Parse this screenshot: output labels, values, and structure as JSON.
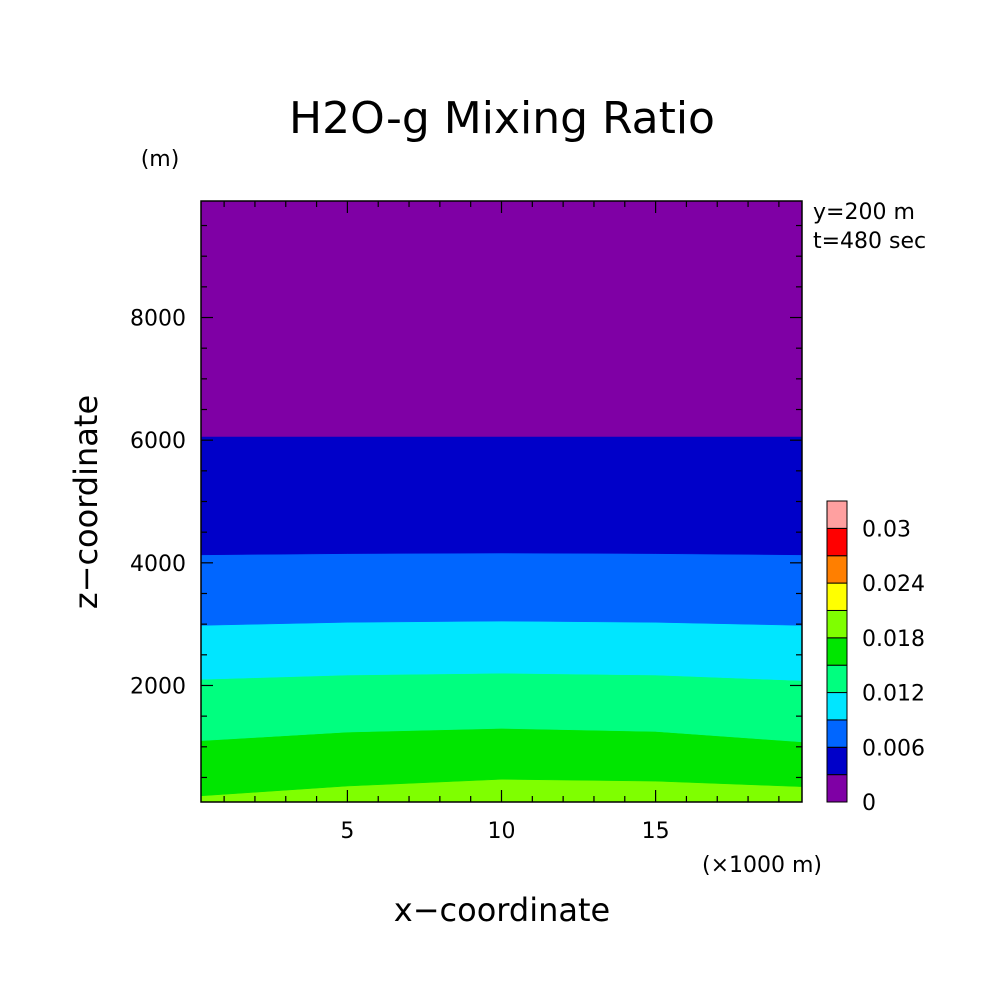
{
  "chart_data": {
    "type": "contour",
    "title": "H2O-g Mixing Ratio",
    "xlabel": "x−coordinate",
    "ylabel": "z−coordinate",
    "x_unit": "(×1000 m)",
    "y_unit": "(m)",
    "annotations": [
      "y=200 m",
      "t=480 sec"
    ],
    "xlim": [
      0.25,
      19.75
    ],
    "ylim": [
      100,
      9900
    ],
    "x_ticks": [
      5,
      10,
      15
    ],
    "y_ticks": [
      2000,
      4000,
      6000,
      8000
    ],
    "contour_levels": [
      0,
      0.003,
      0.006,
      0.009,
      0.012,
      0.015,
      0.018,
      0.021,
      0.024,
      0.027,
      0.03,
      0.033
    ],
    "level_colors": [
      "#7f00a5",
      "#0000c9",
      "#0066ff",
      "#00e6ff",
      "#00ff7f",
      "#00e600",
      "#7fff00",
      "#ffff00",
      "#ff7f00",
      "#ff0000",
      "#ffa0a0"
    ],
    "colorbar_labels": [
      "0",
      "0.006",
      "0.012",
      "0.018",
      "0.024",
      "0.03"
    ],
    "boundaries": [
      {
        "level": 0.018,
        "points": [
          [
            0.25,
            200
          ],
          [
            5,
            360
          ],
          [
            10,
            470
          ],
          [
            15,
            440
          ],
          [
            19.75,
            350
          ]
        ]
      },
      {
        "level": 0.015,
        "points": [
          [
            0.25,
            1100
          ],
          [
            5,
            1240
          ],
          [
            10,
            1300
          ],
          [
            15,
            1250
          ],
          [
            19.75,
            1080
          ]
        ]
      },
      {
        "level": 0.012,
        "points": [
          [
            0.25,
            2100
          ],
          [
            5,
            2170
          ],
          [
            10,
            2200
          ],
          [
            15,
            2170
          ],
          [
            19.75,
            2080
          ]
        ]
      },
      {
        "level": 0.009,
        "points": [
          [
            0.25,
            2980
          ],
          [
            5,
            3030
          ],
          [
            10,
            3050
          ],
          [
            15,
            3030
          ],
          [
            19.75,
            2980
          ]
        ]
      },
      {
        "level": 0.006,
        "points": [
          [
            0.25,
            4130
          ],
          [
            5,
            4150
          ],
          [
            10,
            4160
          ],
          [
            15,
            4150
          ],
          [
            19.75,
            4130
          ]
        ]
      },
      {
        "level": 0.003,
        "points": [
          [
            0.25,
            6060
          ],
          [
            5,
            6060
          ],
          [
            10,
            6060
          ],
          [
            15,
            6060
          ],
          [
            19.75,
            6060
          ]
        ]
      }
    ]
  }
}
